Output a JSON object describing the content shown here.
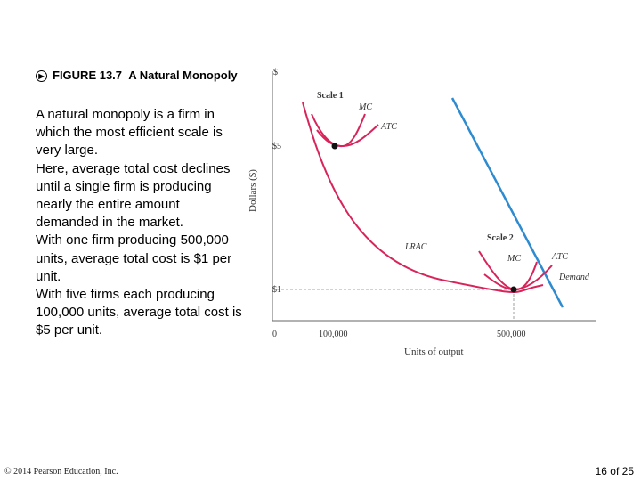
{
  "slide": {
    "figure_number": "FIGURE 13.7",
    "figure_title": "A Natural Monopoly",
    "body": [
      "A natural monopoly is a firm in which the most efficient scale is very large.",
      "Here, average total cost declines until a single firm is producing nearly the entire amount demanded in the market.",
      "With one firm producing 500,000 units, average total cost is $1 per unit.",
      "With five firms each producing 100,000 units, average total cost is $5 per unit."
    ],
    "footer_left": "© 2014 Pearson Education, Inc.",
    "page_number": "16 of 25"
  },
  "figure": {
    "ylabel": "Dollars ($)",
    "xlabel": "Units of output",
    "y_axis_top": "$",
    "y_tick_5": "$5",
    "y_tick_1": "$1",
    "x_tick_0": "0",
    "x_tick_100k": "100,000",
    "x_tick_500k": "500,000",
    "labels": {
      "scale1": "Scale 1",
      "mc1": "MC",
      "atc1": "ATC",
      "lrac": "LRAC",
      "scale2": "Scale 2",
      "mc2": "MC",
      "atc2": "ATC",
      "demand": "Demand"
    },
    "colors": {
      "cost_curves": "#d8245a",
      "demand": "#2e8bd0",
      "axes": "#666666",
      "dashed": "#888888"
    }
  }
}
